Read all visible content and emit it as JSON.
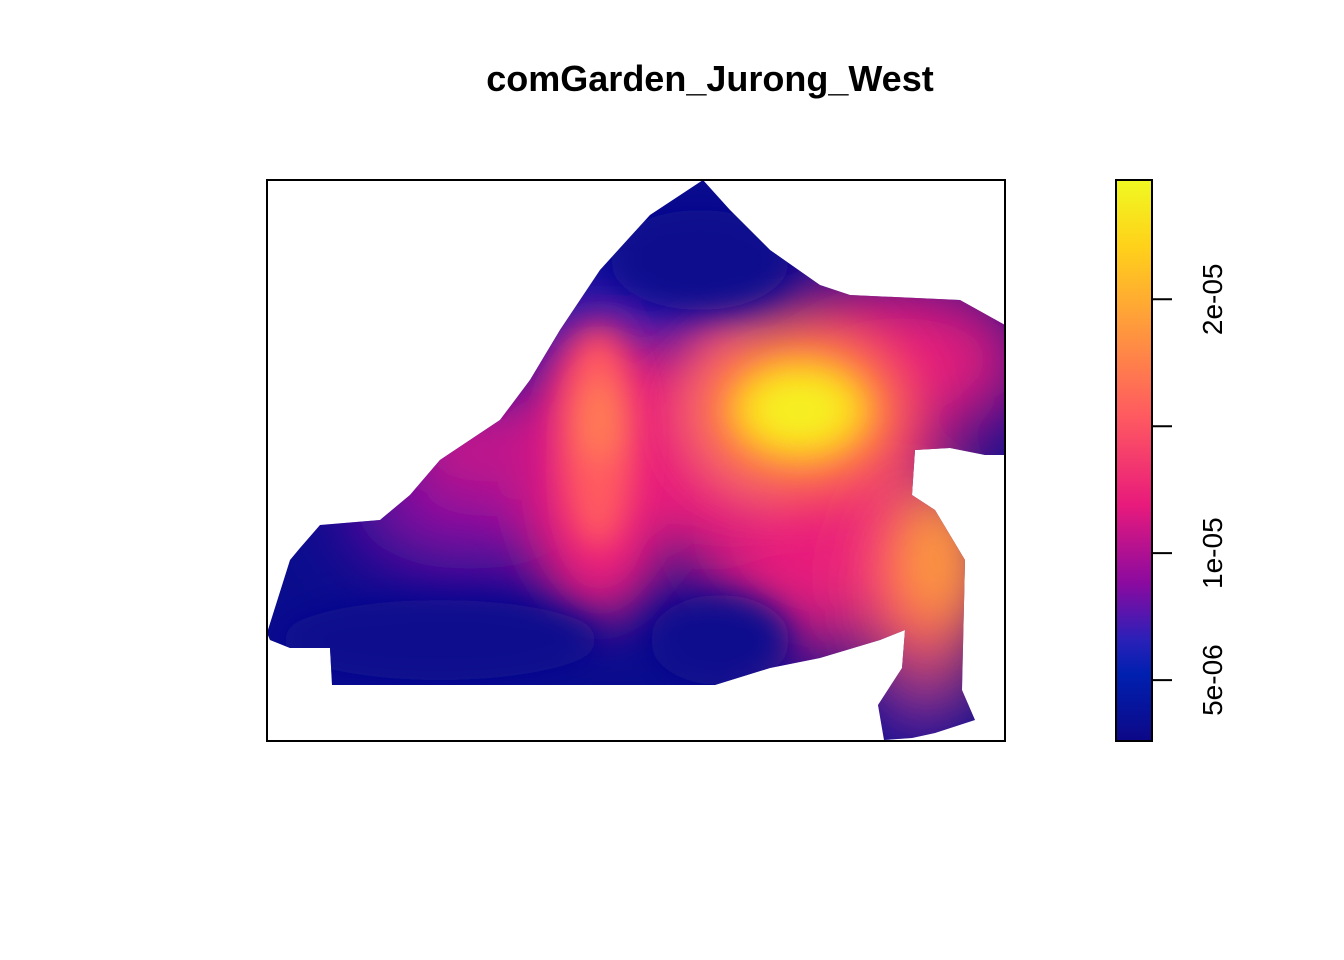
{
  "chart_data": {
    "type": "heatmap",
    "title": "comGarden_Jurong_West",
    "xlabel": "",
    "ylabel": "",
    "colorbar": {
      "range": [
        2.6e-06,
        2.47e-05
      ],
      "ticks": [
        {
          "value": 5e-06,
          "label": "5e-06"
        },
        {
          "value": 1e-05,
          "label": "1e-05"
        },
        {
          "value": 1.5e-05,
          "label": ""
        },
        {
          "value": 2e-05,
          "label": "2e-05"
        }
      ],
      "colors": [
        "#0d0887",
        "#0020b0",
        "#7a0aa8",
        "#e81a7c",
        "#ff5a60",
        "#ff9a3c",
        "#ffd11a",
        "#f0f921"
      ]
    },
    "grid": false,
    "legend": "right"
  }
}
